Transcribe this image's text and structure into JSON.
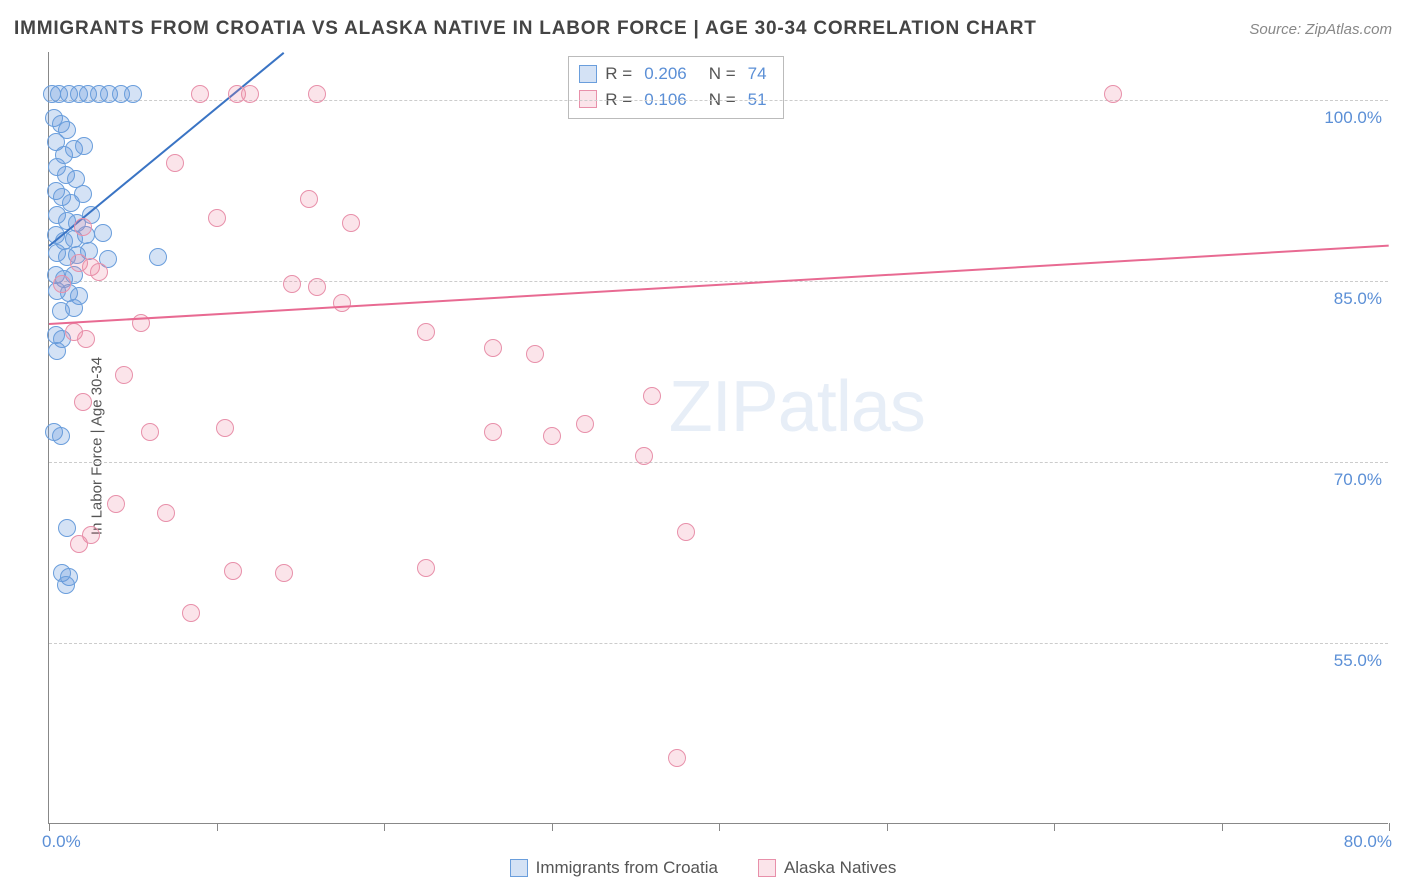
{
  "title": "IMMIGRANTS FROM CROATIA VS ALASKA NATIVE IN LABOR FORCE | AGE 30-34 CORRELATION CHART",
  "source_label": "Source: ",
  "source_value": "ZipAtlas.com",
  "ylabel": "In Labor Force | Age 30-34",
  "watermark_a": "ZIP",
  "watermark_b": "atlas",
  "chart": {
    "type": "scatter",
    "xlim": [
      0,
      80
    ],
    "ylim": [
      40,
      104
    ],
    "xtick_positions": [
      0,
      10,
      20,
      30,
      40,
      50,
      60,
      70,
      80
    ],
    "xtick_labels": {
      "0": "0.0%",
      "80": "80.0%"
    },
    "ytick_positions": [
      55,
      70,
      85,
      100
    ],
    "ytick_labels": [
      "55.0%",
      "70.0%",
      "85.0%",
      "100.0%"
    ],
    "grid_color": "#cccccc",
    "background_color": "#ffffff",
    "marker_radius": 9,
    "marker_stroke_width": 1.5,
    "trend_width": 2,
    "series": [
      {
        "name": "Immigrants from Croatia",
        "color_fill": "rgba(100,150,220,0.28)",
        "color_stroke": "#6a9edc",
        "trend_color": "#3a74c4",
        "r": "0.206",
        "n": "74",
        "trend": {
          "x1": 0,
          "y1": 88,
          "x2": 14,
          "y2": 104
        },
        "points": [
          [
            0.2,
            100.5
          ],
          [
            0.6,
            100.5
          ],
          [
            1.2,
            100.5
          ],
          [
            1.8,
            100.5
          ],
          [
            2.3,
            100.5
          ],
          [
            3.0,
            100.5
          ],
          [
            3.6,
            100.5
          ],
          [
            4.3,
            100.5
          ],
          [
            5.0,
            100.5
          ],
          [
            0.3,
            98.5
          ],
          [
            0.7,
            98
          ],
          [
            1.1,
            97.5
          ],
          [
            0.4,
            96.5
          ],
          [
            0.9,
            95.5
          ],
          [
            1.5,
            96
          ],
          [
            2.1,
            96.2
          ],
          [
            0.5,
            94.5
          ],
          [
            1.0,
            93.8
          ],
          [
            1.6,
            93.5
          ],
          [
            0.4,
            92.5
          ],
          [
            0.8,
            92
          ],
          [
            1.3,
            91.5
          ],
          [
            2.0,
            92.2
          ],
          [
            0.5,
            90.5
          ],
          [
            1.1,
            90
          ],
          [
            1.7,
            89.8
          ],
          [
            2.5,
            90.5
          ],
          [
            0.4,
            88.8
          ],
          [
            0.9,
            88.3
          ],
          [
            1.5,
            88.5
          ],
          [
            2.2,
            88.8
          ],
          [
            3.2,
            89
          ],
          [
            0.5,
            87.3
          ],
          [
            1.1,
            87
          ],
          [
            1.7,
            87.2
          ],
          [
            2.4,
            87.5
          ],
          [
            3.5,
            86.8
          ],
          [
            6.5,
            87
          ],
          [
            0.4,
            85.5
          ],
          [
            0.9,
            85.2
          ],
          [
            1.5,
            85.5
          ],
          [
            0.5,
            84.2
          ],
          [
            1.2,
            84
          ],
          [
            1.8,
            83.8
          ],
          [
            0.7,
            82.5
          ],
          [
            1.5,
            82.8
          ],
          [
            0.4,
            80.5
          ],
          [
            0.8,
            80.2
          ],
          [
            0.5,
            79.2
          ],
          [
            0.3,
            72.5
          ],
          [
            0.7,
            72.2
          ],
          [
            1.1,
            64.5
          ],
          [
            0.8,
            60.8
          ],
          [
            1.2,
            60.5
          ],
          [
            1.0,
            59.8
          ]
        ]
      },
      {
        "name": "Alaska Natives",
        "color_fill": "rgba(235,130,160,0.22)",
        "color_stroke": "#e890aa",
        "trend_color": "#e86a92",
        "r": "0.106",
        "n": "51",
        "trend": {
          "x1": 0,
          "y1": 81.5,
          "x2": 80,
          "y2": 88
        },
        "points": [
          [
            9.0,
            100.5
          ],
          [
            11.2,
            100.5
          ],
          [
            12.0,
            100.5
          ],
          [
            16.0,
            100.5
          ],
          [
            63.5,
            100.5
          ],
          [
            7.5,
            94.8
          ],
          [
            15.5,
            91.8
          ],
          [
            2.0,
            89.5
          ],
          [
            10.0,
            90.2
          ],
          [
            18.0,
            89.8
          ],
          [
            1.8,
            86.5
          ],
          [
            2.5,
            86.2
          ],
          [
            0.8,
            84.8
          ],
          [
            3.0,
            85.8
          ],
          [
            14.5,
            84.8
          ],
          [
            16.0,
            84.5
          ],
          [
            17.5,
            83.2
          ],
          [
            1.5,
            80.8
          ],
          [
            2.2,
            80.2
          ],
          [
            5.5,
            81.5
          ],
          [
            22.5,
            80.8
          ],
          [
            26.5,
            79.5
          ],
          [
            29.0,
            79
          ],
          [
            4.5,
            77.2
          ],
          [
            2.0,
            75.0
          ],
          [
            36.0,
            75.5
          ],
          [
            6.0,
            72.5
          ],
          [
            10.5,
            72.8
          ],
          [
            26.5,
            72.5
          ],
          [
            30.0,
            72.2
          ],
          [
            32.0,
            73.2
          ],
          [
            35.5,
            70.5
          ],
          [
            4.0,
            66.5
          ],
          [
            7.0,
            65.8
          ],
          [
            2.5,
            64.0
          ],
          [
            38.0,
            64.2
          ],
          [
            1.8,
            63.2
          ],
          [
            11.0,
            61.0
          ],
          [
            14.0,
            60.8
          ],
          [
            22.5,
            61.2
          ],
          [
            8.5,
            57.5
          ],
          [
            37.5,
            45.5
          ]
        ]
      }
    ]
  },
  "rn_legend": {
    "r_label": "R =",
    "n_label": "N ="
  },
  "bottom_legend": {
    "items": [
      "Immigrants from Croatia",
      "Alaska Natives"
    ]
  }
}
